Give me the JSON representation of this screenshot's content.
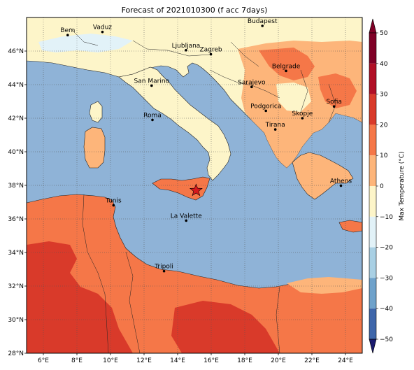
{
  "title": "Forecast of 2021010300 (f acc 7days)",
  "map": {
    "lon_range": [
      5,
      25
    ],
    "lat_range": [
      28,
      48
    ],
    "x_ticks": [
      "6°E",
      "8°E",
      "10°E",
      "12°E",
      "14°E",
      "16°E",
      "18°E",
      "20°E",
      "22°E",
      "24°E"
    ],
    "y_ticks": [
      "28°N",
      "30°N",
      "32°N",
      "34°N",
      "36°N",
      "38°N",
      "40°N",
      "42°N",
      "44°N",
      "46°N"
    ],
    "grid": "dotted",
    "colors": {
      "sea": "#8fb3d7",
      "land_cool": "#fdf5c9",
      "land_mild": "#fdb57a",
      "land_warm": "#f57748",
      "land_hot": "#d93a2a",
      "cold_pale": "#e2f2f8"
    },
    "marker": {
      "lon": 15.1,
      "lat": 37.7,
      "symbol": "red-star"
    }
  },
  "cities": [
    {
      "name": "Bern",
      "lon": 7.45,
      "lat": 46.95
    },
    {
      "name": "Vaduz",
      "lon": 9.52,
      "lat": 47.14
    },
    {
      "name": "Budapest",
      "lon": 19.05,
      "lat": 47.5
    },
    {
      "name": "Ljubljana",
      "lon": 14.5,
      "lat": 46.05
    },
    {
      "name": "Zagreb",
      "lon": 15.98,
      "lat": 45.81
    },
    {
      "name": "Belgrade",
      "lon": 20.46,
      "lat": 44.82
    },
    {
      "name": "San Marino",
      "lon": 12.45,
      "lat": 43.94
    },
    {
      "name": "Sarajevo",
      "lon": 18.41,
      "lat": 43.86
    },
    {
      "name": "Sofia",
      "lon": 23.32,
      "lat": 42.7
    },
    {
      "name": "Podgorica",
      "lon": 19.26,
      "lat": 42.44
    },
    {
      "name": "Skopje",
      "lon": 21.43,
      "lat": 42.0
    },
    {
      "name": "Roma",
      "lon": 12.5,
      "lat": 41.9
    },
    {
      "name": "Tirana",
      "lon": 19.82,
      "lat": 41.33
    },
    {
      "name": "Athens",
      "lon": 23.73,
      "lat": 37.98
    },
    {
      "name": "Tunis",
      "lon": 10.18,
      "lat": 36.81
    },
    {
      "name": "La Valette",
      "lon": 14.51,
      "lat": 35.9
    },
    {
      "name": "Tripoli",
      "lon": 13.19,
      "lat": 32.89
    }
  ],
  "colorbar": {
    "label": "Max Temperature (°C)",
    "ticks": [
      "50",
      "40",
      "30",
      "20",
      "10",
      "0",
      "−10",
      "−20",
      "−30",
      "−40",
      "−50"
    ],
    "colors": [
      "#7f0026",
      "#b10f26",
      "#d93a2a",
      "#f57748",
      "#fdb57a",
      "#fdf5c9",
      "#e2f2f8",
      "#a9d0e4",
      "#6fa2cb",
      "#3e66aa",
      "#253494"
    ]
  }
}
